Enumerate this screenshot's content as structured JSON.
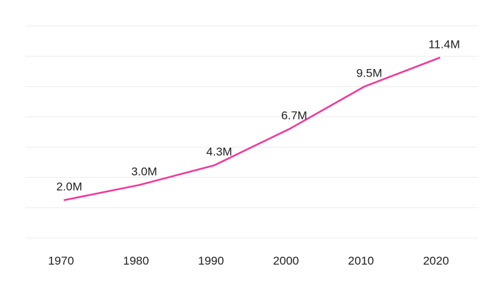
{
  "chart_data": {
    "type": "line",
    "title": "",
    "xlabel": "",
    "ylabel": "",
    "categories": [
      "1970",
      "1980",
      "1990",
      "2000",
      "2010",
      "2020"
    ],
    "series": [
      {
        "values": [
          2.0,
          3.0,
          4.3,
          6.7,
          9.5,
          11.4
        ],
        "data_labels": [
          "2.0M",
          "3.0M",
          "4.3M",
          "6.7M",
          "9.5M",
          "11.4M"
        ],
        "color": "#f0399a"
      }
    ],
    "ylim": [
      -0.5,
      13.5
    ],
    "grid": true,
    "legend": "none"
  }
}
